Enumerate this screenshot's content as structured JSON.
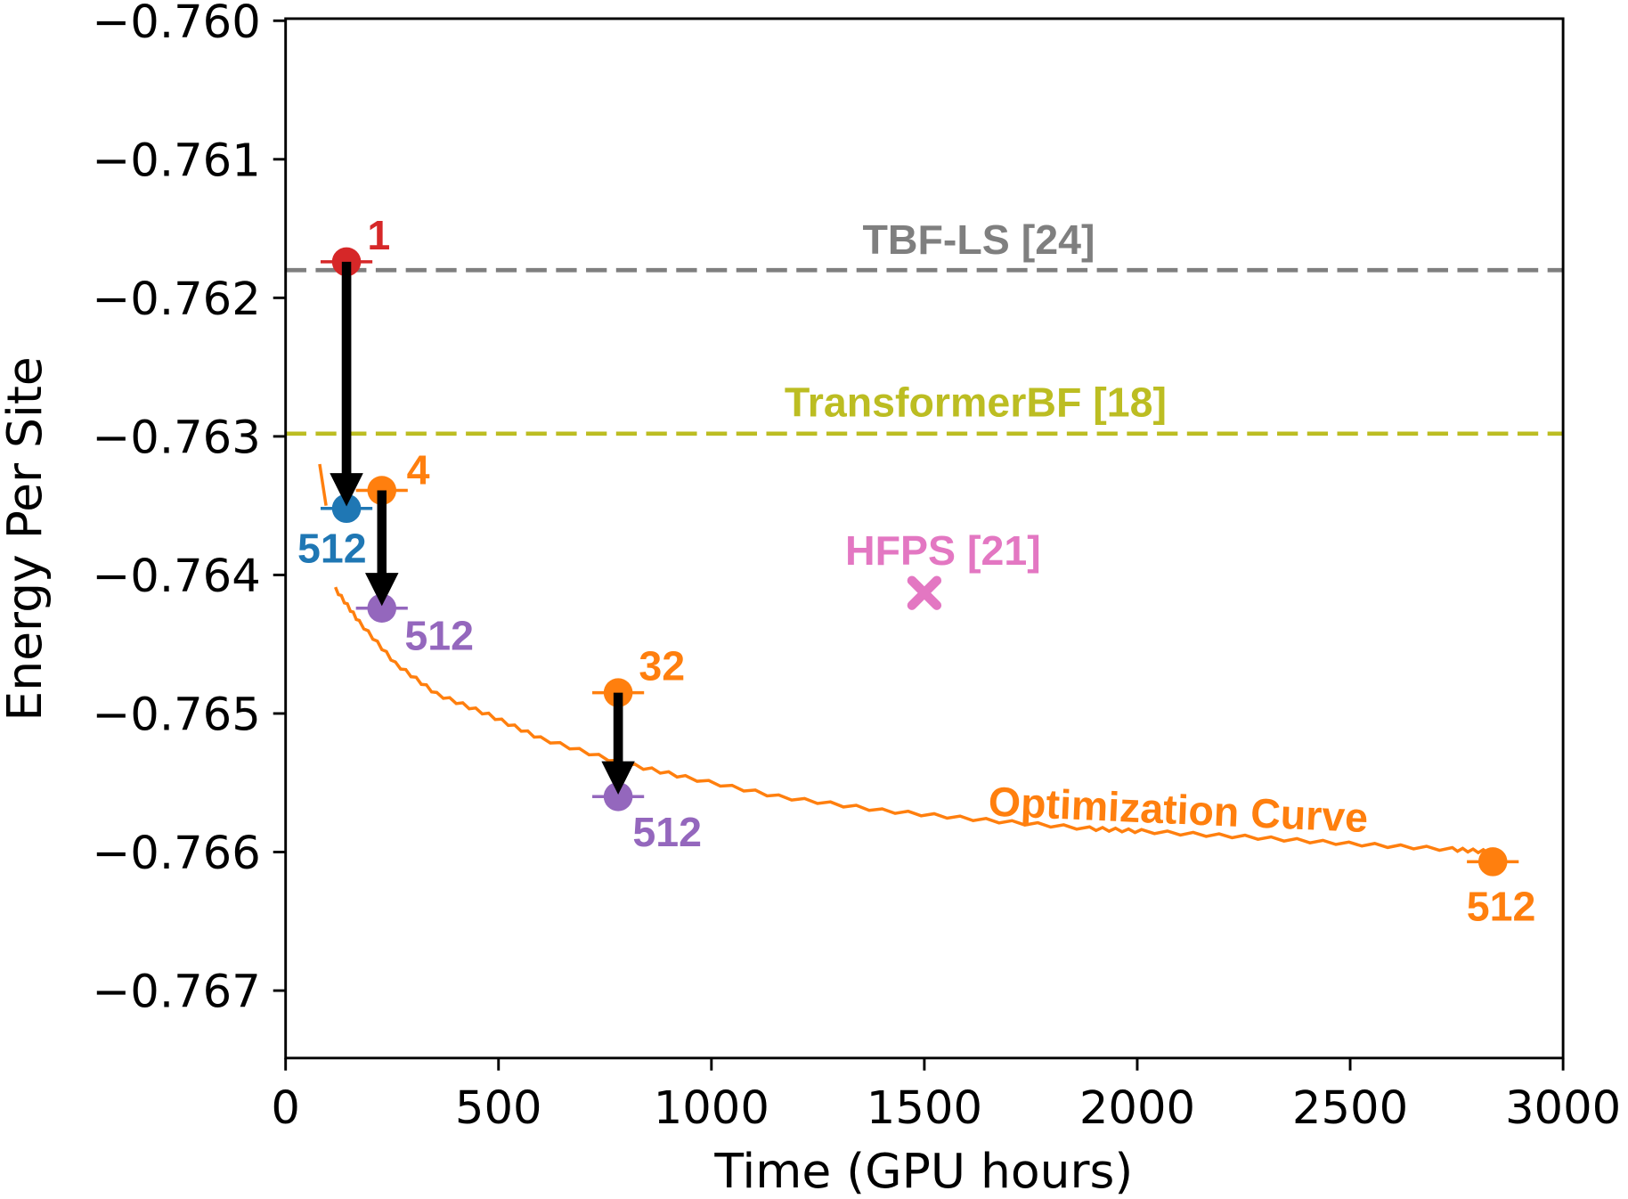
{
  "chart_data": {
    "type": "scatter",
    "xlabel": "Time (GPU hours)",
    "ylabel": "Energy Per Site",
    "xlim": [
      0,
      3000
    ],
    "ylim": [
      -0.76748,
      -0.76
    ],
    "xticks": [
      "0",
      "500",
      "1000",
      "1500",
      "2000",
      "2500",
      "3000"
    ],
    "xtick_values": [
      0,
      500,
      1000,
      1500,
      2000,
      2500,
      3000
    ],
    "yticks": [
      "−0.760",
      "−0.761",
      "−0.762",
      "−0.763",
      "−0.764",
      "−0.765",
      "−0.766",
      "−0.767"
    ],
    "ytick_values": [
      -0.76,
      -0.761,
      -0.762,
      -0.763,
      -0.764,
      -0.765,
      -0.766,
      -0.767
    ],
    "grid": false,
    "reference_lines": [
      {
        "label": "TBF-LS [24]",
        "y": -0.7618,
        "color": "#7f7f7f",
        "style": "dashed"
      },
      {
        "label": "TransformerBF [18]",
        "y": -0.76298,
        "color": "#bcbd22",
        "style": "dashed"
      }
    ],
    "points": [
      {
        "label": "1",
        "x": 143,
        "y": -0.76174,
        "color": "#d62728"
      },
      {
        "label": "512",
        "x": 143,
        "y": -0.76352,
        "color": "#1f77b4"
      },
      {
        "label": "4",
        "x": 226,
        "y": -0.76339,
        "color": "#ff7f0e"
      },
      {
        "label": "512",
        "x": 226,
        "y": -0.76424,
        "color": "#9467bd"
      },
      {
        "label": "32",
        "x": 781,
        "y": -0.76485,
        "color": "#ff7f0e"
      },
      {
        "label": "512",
        "x": 781,
        "y": -0.7656,
        "color": "#9467bd"
      },
      {
        "label": "512",
        "x": 2835,
        "y": -0.76607,
        "color": "#ff7f0e"
      }
    ],
    "markers": [
      {
        "label": "HFPS [21]",
        "x": 1500,
        "y": -0.76413,
        "color": "#e377c2",
        "marker": "x"
      }
    ],
    "arrows": [
      {
        "from": [
          143,
          -0.76174
        ],
        "to": [
          143,
          -0.76352
        ]
      },
      {
        "from": [
          226,
          -0.76339
        ],
        "to": [
          226,
          -0.76424
        ]
      },
      {
        "from": [
          781,
          -0.76485
        ],
        "to": [
          781,
          -0.7656
        ]
      }
    ],
    "series": [
      {
        "name": "Optimization Curve",
        "color": "#ff7f0e",
        "x": [
          80,
          95,
          117,
          173,
          258,
          355,
          477,
          599,
          781,
          939,
          1158,
          1401,
          1645,
          1888,
          2010,
          2253,
          2497,
          2740,
          2837
        ],
        "y": [
          -0.7632,
          -0.7635,
          -0.7641,
          -0.76434,
          -0.76464,
          -0.76486,
          -0.76501,
          -0.76518,
          -0.76535,
          -0.76546,
          -0.7656,
          -0.7657,
          -0.76577,
          -0.76583,
          -0.76585,
          -0.76589,
          -0.76594,
          -0.76598,
          -0.766
        ]
      }
    ]
  }
}
